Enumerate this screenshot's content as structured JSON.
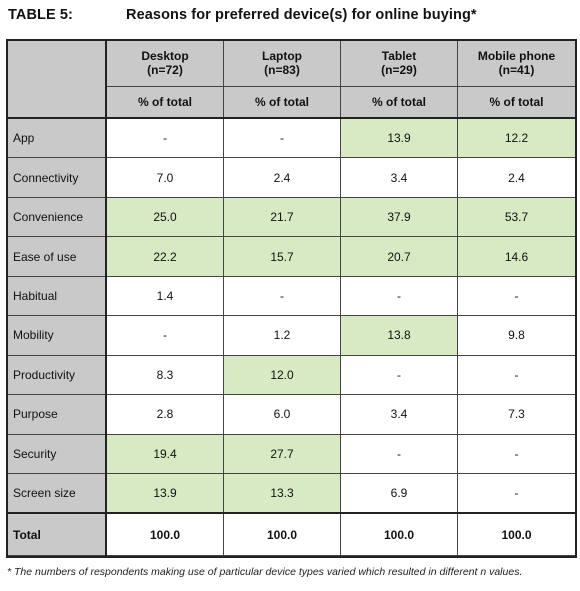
{
  "title": {
    "label": "TABLE 5:",
    "text": "Reasons for preferred device(s) for online buying*"
  },
  "columns": [
    {
      "device": "Desktop",
      "n": "(n=72)",
      "unit": "% of total"
    },
    {
      "device": "Laptop",
      "n": "(n=83)",
      "unit": "% of total"
    },
    {
      "device": "Tablet",
      "n": "(n=29)",
      "unit": "% of total"
    },
    {
      "device": "Mobile phone",
      "n": "(n=41)",
      "unit": "% of total"
    }
  ],
  "rows": [
    {
      "label": "App",
      "values": [
        "-",
        "-",
        "13.9",
        "12.2"
      ],
      "highlight": [
        false,
        false,
        true,
        true
      ]
    },
    {
      "label": "Connectivity",
      "values": [
        "7.0",
        "2.4",
        "3.4",
        "2.4"
      ],
      "highlight": [
        false,
        false,
        false,
        false
      ]
    },
    {
      "label": "Convenience",
      "values": [
        "25.0",
        "21.7",
        "37.9",
        "53.7"
      ],
      "highlight": [
        true,
        true,
        true,
        true
      ]
    },
    {
      "label": "Ease of use",
      "values": [
        "22.2",
        "15.7",
        "20.7",
        "14.6"
      ],
      "highlight": [
        true,
        true,
        true,
        true
      ]
    },
    {
      "label": "Habitual",
      "values": [
        "1.4",
        "-",
        "-",
        "-"
      ],
      "highlight": [
        false,
        false,
        false,
        false
      ]
    },
    {
      "label": "Mobility",
      "values": [
        "-",
        "1.2",
        "13.8",
        "9.8"
      ],
      "highlight": [
        false,
        false,
        true,
        false
      ]
    },
    {
      "label": "Productivity",
      "values": [
        "8.3",
        "12.0",
        "-",
        "-"
      ],
      "highlight": [
        false,
        true,
        false,
        false
      ]
    },
    {
      "label": "Purpose",
      "values": [
        "2.8",
        "6.0",
        "3.4",
        "7.3"
      ],
      "highlight": [
        false,
        false,
        false,
        false
      ]
    },
    {
      "label": "Security",
      "values": [
        "19.4",
        "27.7",
        "-",
        "-"
      ],
      "highlight": [
        true,
        true,
        false,
        false
      ]
    },
    {
      "label": "Screen size",
      "values": [
        "13.9",
        "13.3",
        "6.9",
        "-"
      ],
      "highlight": [
        true,
        true,
        false,
        false
      ]
    }
  ],
  "total": {
    "label": "Total",
    "values": [
      "100.0",
      "100.0",
      "100.0",
      "100.0"
    ]
  },
  "footnote": "* The numbers of respondents making use of particular device types varied which resulted in different n values.",
  "colors": {
    "header_bg": "#c9c9c9",
    "highlight_bg": "#d7eac4"
  }
}
